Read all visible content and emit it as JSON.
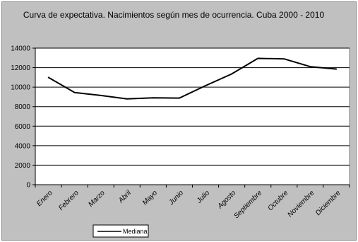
{
  "chart_data": {
    "type": "line",
    "title": "Curva de expectativa. Nacimientos según mes de ocurrencia. Cuba 2000 -  2010",
    "categories": [
      "Enero",
      "Febrero",
      "Marzo",
      "Abril",
      "Mayo",
      "Junio",
      "Julio",
      "Agosto",
      "Septiembre",
      "Octubre",
      "Noviembre",
      "Diciembre"
    ],
    "series": [
      {
        "name": "Mediana",
        "values": [
          11000,
          9450,
          9150,
          8800,
          8900,
          8880,
          10150,
          11350,
          12950,
          12900,
          12100,
          11850
        ],
        "color": "#000000"
      }
    ],
    "ylim": [
      0,
      14000
    ],
    "yticks": [
      "0",
      "2000",
      "4000",
      "6000",
      "8000",
      "10000",
      "12000",
      "14000"
    ],
    "grid": true,
    "legend": "bottom-left",
    "xlabel": "",
    "ylabel": "",
    "colors": {
      "chart_background": "#c0c0c0",
      "plot_background": "#ffffff",
      "gridline": "#000000"
    }
  }
}
